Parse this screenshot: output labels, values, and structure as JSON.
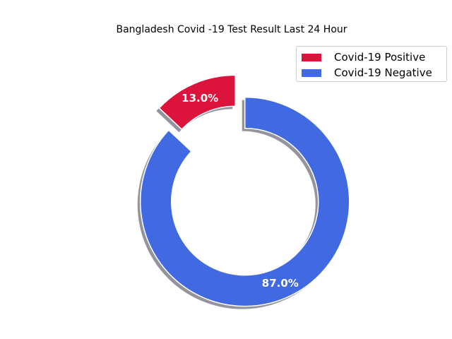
{
  "chart_data": {
    "type": "pie",
    "variant": "donut",
    "title": "Bangladesh Covid -19 Test Result Last 24 Hour",
    "categories": [
      "Covid-19 Positive",
      "Covid-19 Negative"
    ],
    "values": [
      13.0,
      87.0
    ],
    "data_labels": [
      "13.0%",
      "87.0%"
    ],
    "colors": [
      "#dc143c",
      "#4169e1"
    ],
    "exploded": [
      true,
      true
    ],
    "shadow": true,
    "legend_position": "upper-right"
  }
}
